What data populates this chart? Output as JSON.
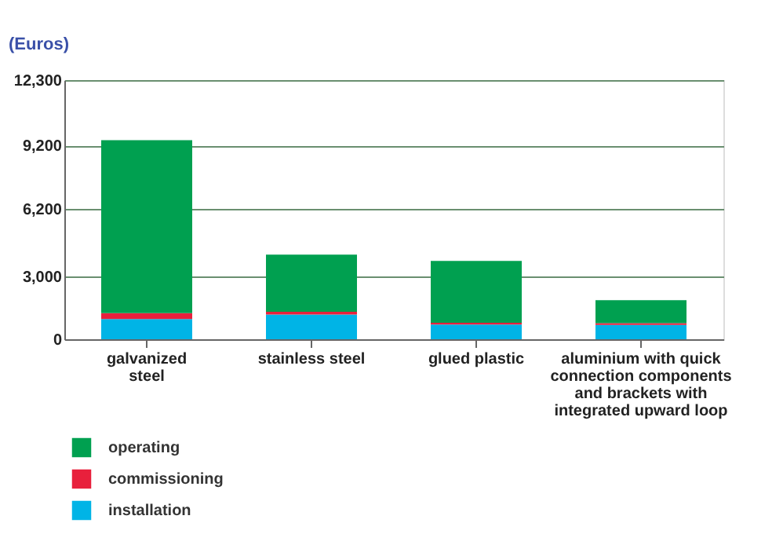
{
  "chart_data": {
    "type": "bar",
    "stacked": true,
    "ylabel": "(Euros)",
    "categories": [
      "galvanized\nsteel",
      "stainless steel",
      "glued plastic",
      "aluminium with quick\nconnection components\nand brackets with\nintegrated upward loop"
    ],
    "series": [
      {
        "name": "installation",
        "color": "#00b4e6",
        "values": [
          960,
          1170,
          700,
          680
        ]
      },
      {
        "name": "commissioning",
        "color": "#e8203c",
        "values": [
          280,
          130,
          80,
          80
        ]
      },
      {
        "name": "operating",
        "color": "#00a050",
        "values": [
          8210,
          2720,
          2940,
          1090
        ]
      }
    ],
    "ylim": [
      0,
      12300
    ],
    "yticks": [
      0,
      {
        "value": 3000,
        "label": "3,000"
      },
      {
        "value": 6200,
        "label": "6,200"
      },
      {
        "value": 9200,
        "label": "9,200"
      },
      {
        "value": 12300,
        "label": "12,300"
      }
    ],
    "grid": "y",
    "legend": "bottom left"
  }
}
